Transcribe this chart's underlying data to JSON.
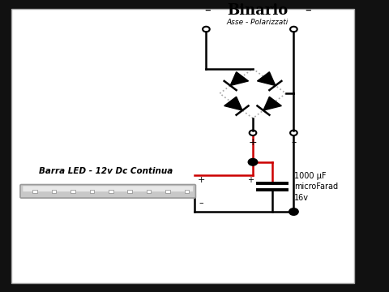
{
  "bg_color": "#111111",
  "panel_color": "#ffffff",
  "title": "Binario",
  "subtitle": "Asse - Polarizzati",
  "title_minus_left": "–",
  "title_minus_right": "–",
  "label_barra": "Barra LED - 12v Dc Continua",
  "label_cap": "1000 µF\nmicroFarad\n16v",
  "wire_color_red": "#cc0000",
  "wire_color_black": "#000000",
  "line_width": 1.8
}
